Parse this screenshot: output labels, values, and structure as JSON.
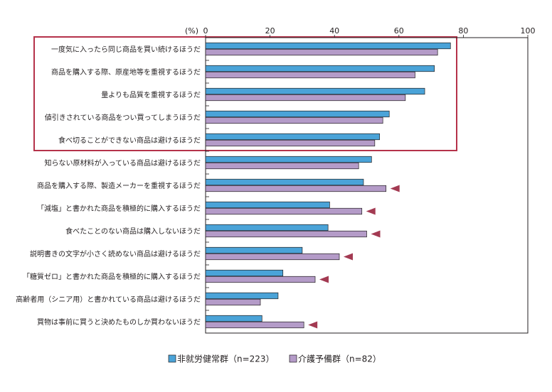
{
  "chart_data": {
    "type": "bar",
    "orientation": "horizontal",
    "unit_label": "(%)",
    "xlim": [
      0,
      100
    ],
    "xticks": [
      "0",
      "20",
      "40",
      "60",
      "80",
      "100"
    ],
    "categories": [
      "一度気に入ったら同じ商品を買い続けるほうだ",
      "商品を購入する際、原産地等を重視するほうだ",
      "量よりも品質を重視するほうだ",
      "値引きされている商品をつい買ってしまうほうだ",
      "食べ切ることができない商品は避けるほうだ",
      "知らない原材料が入っている商品は避けるほうだ",
      "商品を購入する際、製造メーカーを重視するほうだ",
      "「減塩」と書かれた商品を積極的に購入するほうだ",
      "食べたことのない商品は購入しないほうだ",
      "説明書きの文字が小さく読めない商品は避けるほうだ",
      "「糖質ゼロ」と書かれた商品を積極的に購入するほうだ",
      "高齢者用（シニア用）と書かれている商品は避けるほうだ",
      "買物は事前に買うと決めたものしか買わないほうだ"
    ],
    "series": [
      {
        "name": "非就労健常群（n=223）",
        "color": "#4aa3d8",
        "values": [
          76,
          71,
          68,
          57,
          54,
          51.5,
          49,
          38.5,
          38,
          30,
          24,
          22.5,
          17.5
        ]
      },
      {
        "name": "介護予備群（n=82）",
        "color": "#b49bc8",
        "values": [
          72,
          65,
          62,
          55,
          52.5,
          47.5,
          56,
          48.5,
          50,
          41.5,
          34,
          17,
          30.5
        ]
      }
    ],
    "highlight_box_categories": [
      0,
      4
    ],
    "highlight_color": "#b5324a",
    "marker_categories": [
      6,
      7,
      8,
      9,
      10,
      12
    ],
    "marker_color": "#a33a52",
    "legend_position": "bottom-center",
    "grid": false
  }
}
